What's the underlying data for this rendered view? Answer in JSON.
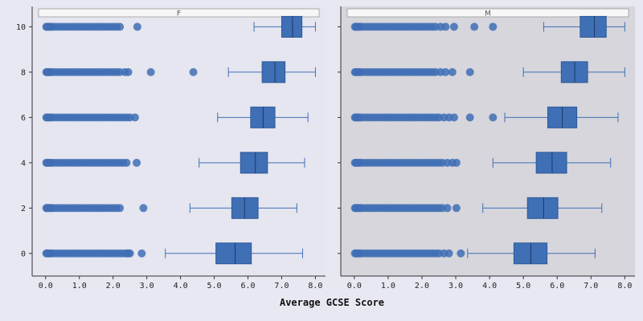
{
  "chart_data": {
    "type": "box",
    "xlabel": "Average GCSE Score",
    "ylabel": "",
    "xlim": [
      -0.4,
      8.3
    ],
    "x_ticks": [
      "0.0",
      "1.0",
      "2.0",
      "3.0",
      "4.0",
      "5.0",
      "6.0",
      "7.0",
      "8.0"
    ],
    "ylim": [
      -1,
      10.9
    ],
    "y_ticks": [
      "0",
      "2",
      "4",
      "6",
      "8",
      "10"
    ],
    "box_color": "#3f6fb5",
    "panel_backgrounds": [
      "#e6e6f0",
      "#d6d6dc"
    ],
    "panels": [
      {
        "label": "F",
        "groups": [
          {
            "y": 0,
            "whisker_low": 3.55,
            "q1": 5.05,
            "median": 5.62,
            "q3": 6.1,
            "whisker_high": 7.62,
            "outliers": [
              0.02,
              0.05,
              0.1,
              0.15,
              0.2,
              0.3,
              0.4,
              0.5,
              0.6,
              0.7,
              0.8,
              0.9,
              1.0,
              1.1,
              1.2,
              1.3,
              1.4,
              1.5,
              1.6,
              1.7,
              1.8,
              1.9,
              2.0,
              2.1,
              2.2,
              2.3,
              2.4,
              2.45,
              2.5,
              2.85
            ]
          },
          {
            "y": 2,
            "whisker_low": 4.28,
            "q1": 5.52,
            "median": 5.9,
            "q3": 6.3,
            "whisker_high": 7.45,
            "outliers": [
              0.02,
              0.05,
              0.1,
              0.15,
              0.2,
              0.3,
              0.4,
              0.5,
              0.6,
              0.7,
              0.8,
              0.9,
              1.0,
              1.1,
              1.2,
              1.3,
              1.4,
              1.5,
              1.6,
              1.7,
              1.8,
              1.9,
              2.0,
              2.1,
              2.2,
              2.9
            ]
          },
          {
            "y": 4,
            "whisker_low": 4.55,
            "q1": 5.78,
            "median": 6.22,
            "q3": 6.58,
            "whisker_high": 7.68,
            "outliers": [
              0.02,
              0.05,
              0.1,
              0.15,
              0.2,
              0.3,
              0.4,
              0.5,
              0.6,
              0.7,
              0.8,
              0.9,
              1.0,
              1.1,
              1.2,
              1.3,
              1.4,
              1.5,
              1.6,
              1.7,
              1.8,
              1.9,
              2.0,
              2.1,
              2.2,
              2.3,
              2.4,
              2.7
            ]
          },
          {
            "y": 6,
            "whisker_low": 5.1,
            "q1": 6.08,
            "median": 6.45,
            "q3": 6.8,
            "whisker_high": 7.78,
            "outliers": [
              0.02,
              0.05,
              0.1,
              0.15,
              0.2,
              0.3,
              0.4,
              0.5,
              0.6,
              0.7,
              0.8,
              0.9,
              1.0,
              1.1,
              1.2,
              1.3,
              1.4,
              1.5,
              1.6,
              1.7,
              1.8,
              1.9,
              2.0,
              2.1,
              2.2,
              2.3,
              2.4,
              2.5,
              2.65
            ]
          },
          {
            "y": 8,
            "whisker_low": 5.42,
            "q1": 6.42,
            "median": 6.8,
            "q3": 7.1,
            "whisker_high": 8.0,
            "outliers": [
              0.02,
              0.05,
              0.1,
              0.15,
              0.2,
              0.3,
              0.4,
              0.5,
              0.6,
              0.7,
              0.8,
              0.9,
              1.0,
              1.1,
              1.2,
              1.3,
              1.4,
              1.5,
              1.6,
              1.7,
              1.8,
              1.9,
              2.0,
              2.1,
              2.2,
              2.35,
              2.45,
              3.12,
              4.38
            ]
          },
          {
            "y": 10,
            "whisker_low": 6.18,
            "q1": 7.0,
            "median": 7.32,
            "q3": 7.6,
            "whisker_high": 8.0,
            "outliers": [
              0.02,
              0.05,
              0.1,
              0.15,
              0.2,
              0.3,
              0.4,
              0.5,
              0.6,
              0.7,
              0.8,
              0.9,
              1.0,
              1.1,
              1.2,
              1.3,
              1.4,
              1.5,
              1.6,
              1.7,
              1.8,
              1.9,
              2.0,
              2.1,
              2.2,
              2.72
            ]
          }
        ]
      },
      {
        "label": "M",
        "groups": [
          {
            "y": 0,
            "whisker_low": 3.35,
            "q1": 4.72,
            "median": 5.22,
            "q3": 5.7,
            "whisker_high": 7.12,
            "outliers": [
              0.02,
              0.05,
              0.1,
              0.15,
              0.2,
              0.3,
              0.4,
              0.5,
              0.6,
              0.7,
              0.8,
              0.9,
              1.0,
              1.1,
              1.2,
              1.3,
              1.4,
              1.5,
              1.6,
              1.7,
              1.8,
              1.9,
              2.0,
              2.1,
              2.2,
              2.3,
              2.4,
              2.5,
              2.65,
              2.8,
              3.15
            ]
          },
          {
            "y": 2,
            "whisker_low": 3.8,
            "q1": 5.12,
            "median": 5.6,
            "q3": 6.02,
            "whisker_high": 7.32,
            "outliers": [
              0.02,
              0.05,
              0.1,
              0.15,
              0.2,
              0.3,
              0.4,
              0.5,
              0.6,
              0.7,
              0.8,
              0.9,
              1.0,
              1.1,
              1.2,
              1.3,
              1.4,
              1.5,
              1.6,
              1.7,
              1.8,
              1.9,
              2.0,
              2.1,
              2.2,
              2.3,
              2.4,
              2.5,
              2.6,
              2.75,
              3.02
            ]
          },
          {
            "y": 4,
            "whisker_low": 4.1,
            "q1": 5.38,
            "median": 5.85,
            "q3": 6.28,
            "whisker_high": 7.58,
            "outliers": [
              0.02,
              0.05,
              0.1,
              0.15,
              0.2,
              0.3,
              0.4,
              0.5,
              0.6,
              0.7,
              0.8,
              0.9,
              1.0,
              1.1,
              1.2,
              1.3,
              1.4,
              1.5,
              1.6,
              1.7,
              1.8,
              1.9,
              2.0,
              2.1,
              2.2,
              2.3,
              2.4,
              2.5,
              2.6,
              2.75,
              2.9,
              3.02
            ]
          },
          {
            "y": 6,
            "whisker_low": 4.45,
            "q1": 5.72,
            "median": 6.15,
            "q3": 6.58,
            "whisker_high": 7.8,
            "outliers": [
              0.02,
              0.05,
              0.1,
              0.15,
              0.2,
              0.3,
              0.4,
              0.5,
              0.6,
              0.7,
              0.8,
              0.9,
              1.0,
              1.1,
              1.2,
              1.3,
              1.4,
              1.5,
              1.6,
              1.7,
              1.8,
              1.9,
              2.0,
              2.1,
              2.2,
              2.3,
              2.4,
              2.5,
              2.65,
              2.8,
              2.95,
              3.42,
              4.1
            ]
          },
          {
            "y": 8,
            "whisker_low": 5.0,
            "q1": 6.12,
            "median": 6.52,
            "q3": 6.9,
            "whisker_high": 8.0,
            "outliers": [
              0.02,
              0.05,
              0.1,
              0.15,
              0.2,
              0.3,
              0.4,
              0.5,
              0.6,
              0.7,
              0.8,
              0.9,
              1.0,
              1.1,
              1.2,
              1.3,
              1.4,
              1.5,
              1.6,
              1.7,
              1.8,
              1.9,
              2.0,
              2.1,
              2.2,
              2.3,
              2.4,
              2.55,
              2.7,
              2.9,
              3.42
            ]
          },
          {
            "y": 10,
            "whisker_low": 5.6,
            "q1": 6.68,
            "median": 7.1,
            "q3": 7.45,
            "whisker_high": 8.0,
            "outliers": [
              0.02,
              0.05,
              0.1,
              0.15,
              0.2,
              0.3,
              0.4,
              0.5,
              0.6,
              0.7,
              0.8,
              0.9,
              1.0,
              1.1,
              1.2,
              1.3,
              1.4,
              1.5,
              1.6,
              1.7,
              1.8,
              1.9,
              2.0,
              2.1,
              2.2,
              2.3,
              2.4,
              2.55,
              2.7,
              2.95,
              3.55,
              4.1
            ]
          }
        ]
      }
    ]
  }
}
